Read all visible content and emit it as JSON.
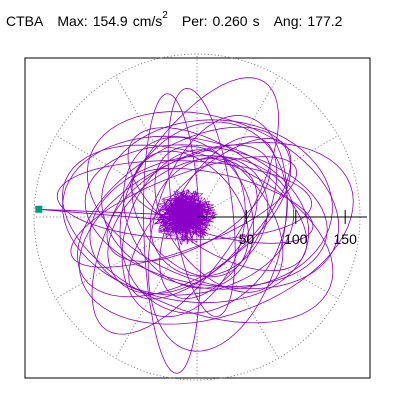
{
  "header": {
    "station": "CTBA",
    "max_label": "Max:",
    "max_value": "154.9",
    "max_unit": "cm/s",
    "max_unit_exp": "2",
    "per_label": "Per:",
    "per_value": "0.260",
    "per_unit": "s",
    "ang_label": "Ang:",
    "ang_value": "177.2"
  },
  "chart_data": {
    "type": "polar-orbit",
    "title": "",
    "radial_ticks": [
      50,
      100,
      150
    ],
    "radial_tick_labels": [
      "50",
      "100",
      "150"
    ],
    "r_max": 165,
    "spoke_step_deg": 30,
    "grid": true,
    "peak": {
      "amplitude": 154.9,
      "angle_deg": 177.2
    },
    "colors": {
      "trace": "#8B00C8",
      "marker": "#009B7A",
      "grid": "#888888",
      "axis": "#000000"
    }
  }
}
